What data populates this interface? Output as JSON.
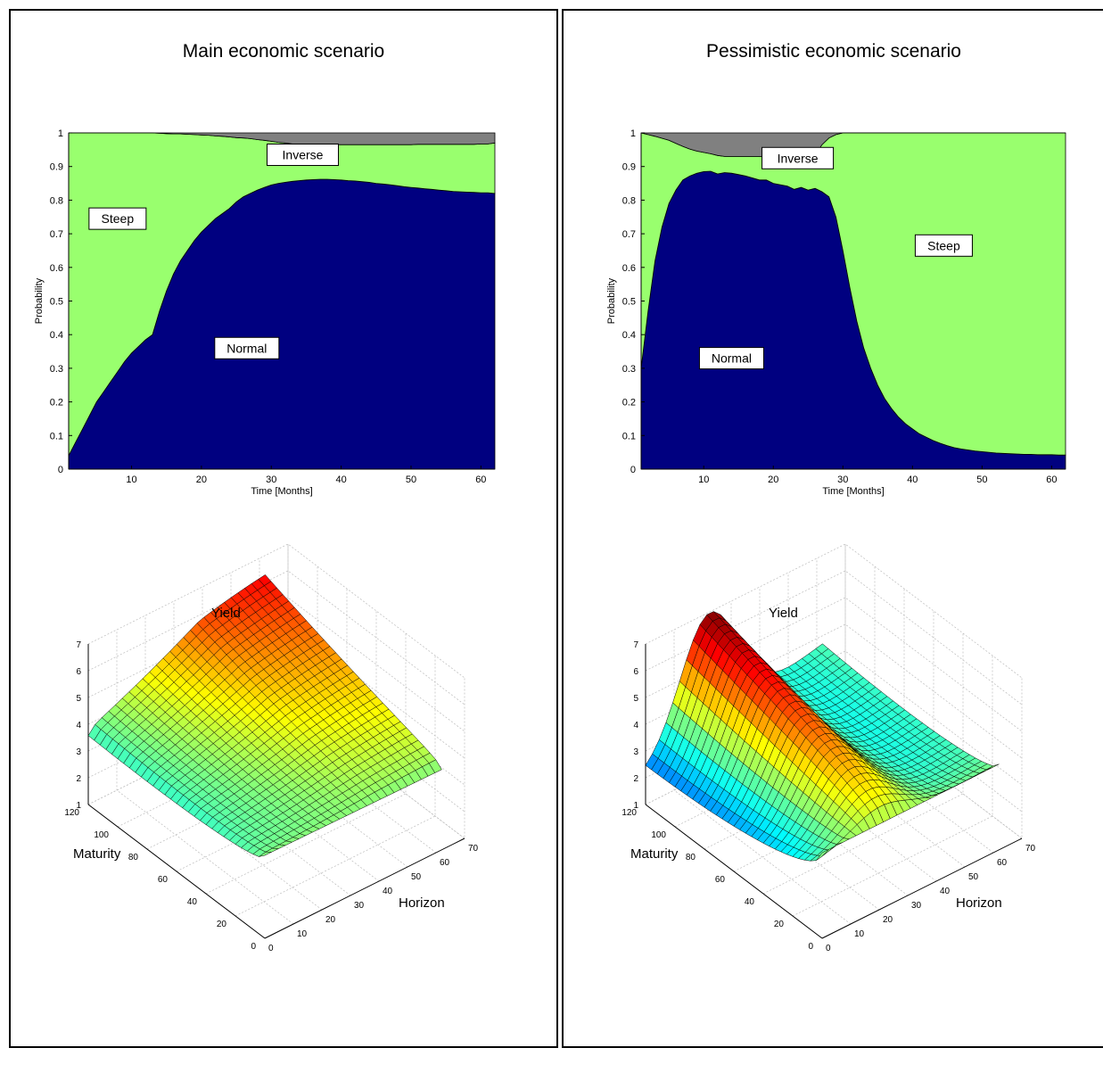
{
  "panels": [
    {
      "title": "Main economic scenario",
      "chart_data": {
        "type": "area",
        "stacked": true,
        "xlabel": "Time [Months]",
        "ylabel": "Probability",
        "xlim": [
          1,
          62
        ],
        "ylim": [
          0,
          1
        ],
        "xticks": [
          10,
          20,
          30,
          40,
          50,
          60
        ],
        "yticks": [
          0,
          0.1,
          0.2,
          0.3,
          0.4,
          0.5,
          0.6,
          0.7,
          0.8,
          0.9,
          1
        ],
        "x": [
          1,
          2,
          3,
          4,
          5,
          6,
          7,
          8,
          9,
          10,
          11,
          12,
          13,
          14,
          15,
          16,
          17,
          18,
          19,
          20,
          21,
          22,
          23,
          24,
          25,
          26,
          27,
          28,
          29,
          30,
          31,
          32,
          33,
          34,
          35,
          36,
          37,
          38,
          39,
          40,
          41,
          42,
          43,
          44,
          45,
          46,
          47,
          48,
          49,
          50,
          51,
          52,
          53,
          54,
          55,
          56,
          57,
          58,
          59,
          60,
          61,
          62
        ],
        "series": [
          {
            "name": "Normal",
            "color": "#000080",
            "values": [
              0.04,
              0.08,
              0.12,
              0.16,
              0.2,
              0.23,
              0.26,
              0.29,
              0.32,
              0.345,
              0.365,
              0.385,
              0.4,
              0.47,
              0.53,
              0.58,
              0.62,
              0.65,
              0.68,
              0.705,
              0.725,
              0.745,
              0.76,
              0.775,
              0.795,
              0.81,
              0.82,
              0.83,
              0.838,
              0.845,
              0.85,
              0.853,
              0.856,
              0.858,
              0.86,
              0.861,
              0.862,
              0.862,
              0.861,
              0.86,
              0.858,
              0.857,
              0.855,
              0.853,
              0.85,
              0.848,
              0.846,
              0.843,
              0.84,
              0.838,
              0.836,
              0.834,
              0.832,
              0.83,
              0.828,
              0.826,
              0.825,
              0.824,
              0.823,
              0.822,
              0.822,
              0.82
            ]
          },
          {
            "name": "Steep",
            "color": "#99ff6e",
            "values": [
              0.96,
              0.92,
              0.88,
              0.84,
              0.8,
              0.77,
              0.74,
              0.71,
              0.68,
              0.655,
              0.635,
              0.615,
              0.6,
              0.529,
              0.468,
              0.417,
              0.377,
              0.346,
              0.315,
              0.289,
              0.268,
              0.246,
              0.23,
              0.213,
              0.191,
              0.175,
              0.163,
              0.15,
              0.14,
              0.13,
              0.122,
              0.117,
              0.111,
              0.108,
              0.105,
              0.104,
              0.103,
              0.103,
              0.104,
              0.105,
              0.107,
              0.108,
              0.11,
              0.112,
              0.115,
              0.117,
              0.119,
              0.122,
              0.125,
              0.127,
              0.13,
              0.132,
              0.134,
              0.136,
              0.138,
              0.14,
              0.141,
              0.142,
              0.143,
              0.145,
              0.145,
              0.15
            ]
          },
          {
            "name": "Inverse",
            "color": "#808080",
            "values": [
              0,
              0,
              0,
              0,
              0,
              0,
              0,
              0,
              0,
              0,
              0,
              0,
              0,
              0.001,
              0.002,
              0.003,
              0.003,
              0.004,
              0.005,
              0.006,
              0.007,
              0.009,
              0.01,
              0.012,
              0.014,
              0.015,
              0.017,
              0.02,
              0.022,
              0.025,
              0.028,
              0.03,
              0.033,
              0.034,
              0.035,
              0.035,
              0.035,
              0.035,
              0.035,
              0.035,
              0.035,
              0.035,
              0.035,
              0.035,
              0.035,
              0.035,
              0.035,
              0.035,
              0.035,
              0.035,
              0.034,
              0.034,
              0.034,
              0.034,
              0.034,
              0.034,
              0.034,
              0.034,
              0.034,
              0.033,
              0.033,
              0.03
            ]
          }
        ],
        "annotations": [
          {
            "text": "Inverse",
            "x": 34.5,
            "y": 0.935
          },
          {
            "text": "Steep",
            "x": 8,
            "y": 0.745
          },
          {
            "text": "Normal",
            "x": 26.5,
            "y": 0.36
          }
        ]
      },
      "surface": {
        "zlabel": "Yield",
        "ylabel": "Maturity",
        "xlabel": "Horizon",
        "zticks": [
          "1",
          "2",
          "3",
          "4",
          "5",
          "6",
          "7"
        ],
        "maturity_ticks": [
          "120",
          "100",
          "80",
          "60",
          "40",
          "20",
          "0"
        ],
        "horizon_ticks": [
          "0",
          "10",
          "20",
          "30",
          "40",
          "50",
          "60",
          "70"
        ]
      }
    },
    {
      "title": "Pessimistic economic scenario",
      "chart_data": {
        "type": "area",
        "stacked": true,
        "xlabel": "Time [Months]",
        "ylabel": "Probability",
        "xlim": [
          1,
          62
        ],
        "ylim": [
          0,
          1
        ],
        "xticks": [
          10,
          20,
          30,
          40,
          50,
          60
        ],
        "yticks": [
          0,
          0.1,
          0.2,
          0.3,
          0.4,
          0.5,
          0.6,
          0.7,
          0.8,
          0.9,
          1
        ],
        "x": [
          1,
          2,
          3,
          4,
          5,
          6,
          7,
          8,
          9,
          10,
          11,
          12,
          13,
          14,
          15,
          16,
          17,
          18,
          19,
          20,
          21,
          22,
          23,
          24,
          25,
          26,
          27,
          28,
          29,
          30,
          31,
          32,
          33,
          34,
          35,
          36,
          37,
          38,
          39,
          40,
          41,
          42,
          43,
          44,
          45,
          46,
          47,
          48,
          49,
          50,
          51,
          52,
          53,
          54,
          55,
          56,
          57,
          58,
          59,
          60,
          61,
          62
        ],
        "series": [
          {
            "name": "Normal",
            "color": "#000080",
            "values": [
              0.3,
              0.47,
              0.62,
              0.72,
              0.79,
              0.83,
              0.86,
              0.872,
              0.88,
              0.885,
              0.886,
              0.878,
              0.882,
              0.88,
              0.876,
              0.872,
              0.866,
              0.86,
              0.86,
              0.85,
              0.846,
              0.842,
              0.832,
              0.838,
              0.83,
              0.835,
              0.825,
              0.81,
              0.75,
              0.65,
              0.54,
              0.44,
              0.36,
              0.3,
              0.25,
              0.21,
              0.18,
              0.155,
              0.135,
              0.12,
              0.105,
              0.095,
              0.085,
              0.077,
              0.07,
              0.064,
              0.06,
              0.057,
              0.054,
              0.052,
              0.05,
              0.048,
              0.047,
              0.046,
              0.045,
              0.044,
              0.044,
              0.043,
              0.043,
              0.043,
              0.042,
              0.042
            ]
          },
          {
            "name": "Steep",
            "color": "#99ff6e",
            "values": [
              0.7,
              0.525,
              0.37,
              0.264,
              0.188,
              0.139,
              0.1,
              0.08,
              0.066,
              0.057,
              0.052,
              0.055,
              0.048,
              0.05,
              0.054,
              0.058,
              0.064,
              0.07,
              0.07,
              0.08,
              0.084,
              0.088,
              0.098,
              0.092,
              0.1,
              0.1,
              0.14,
              0.175,
              0.245,
              0.35,
              0.46,
              0.56,
              0.64,
              0.7,
              0.75,
              0.79,
              0.82,
              0.845,
              0.865,
              0.88,
              0.895,
              0.905,
              0.915,
              0.923,
              0.93,
              0.936,
              0.94,
              0.943,
              0.946,
              0.948,
              0.95,
              0.952,
              0.953,
              0.954,
              0.955,
              0.956,
              0.956,
              0.957,
              0.957,
              0.957,
              0.958,
              0.958
            ]
          },
          {
            "name": "Inverse",
            "color": "#808080",
            "values": [
              0,
              0.005,
              0.01,
              0.016,
              0.022,
              0.031,
              0.04,
              0.048,
              0.054,
              0.058,
              0.062,
              0.067,
              0.07,
              0.07,
              0.07,
              0.07,
              0.07,
              0.07,
              0.07,
              0.07,
              0.07,
              0.07,
              0.07,
              0.07,
              0.07,
              0.065,
              0.035,
              0.015,
              0.005,
              0,
              0,
              0,
              0,
              0,
              0,
              0,
              0,
              0,
              0,
              0,
              0,
              0,
              0,
              0,
              0,
              0,
              0,
              0,
              0,
              0,
              0,
              0,
              0,
              0,
              0,
              0,
              0,
              0,
              0,
              0,
              0,
              0
            ]
          }
        ],
        "annotations": [
          {
            "text": "Inverse",
            "x": 23.5,
            "y": 0.925
          },
          {
            "text": "Steep",
            "x": 44.5,
            "y": 0.665
          },
          {
            "text": "Normal",
            "x": 14,
            "y": 0.33
          }
        ]
      },
      "surface": {
        "zlabel": "Yield",
        "ylabel": "Maturity",
        "xlabel": "Horizon",
        "zticks": [
          "1",
          "2",
          "3",
          "4",
          "5",
          "6",
          "7"
        ],
        "maturity_ticks": [
          "120",
          "100",
          "80",
          "60",
          "40",
          "20",
          "0"
        ],
        "horizon_ticks": [
          "0",
          "10",
          "20",
          "30",
          "40",
          "50",
          "60",
          "70"
        ]
      }
    }
  ]
}
